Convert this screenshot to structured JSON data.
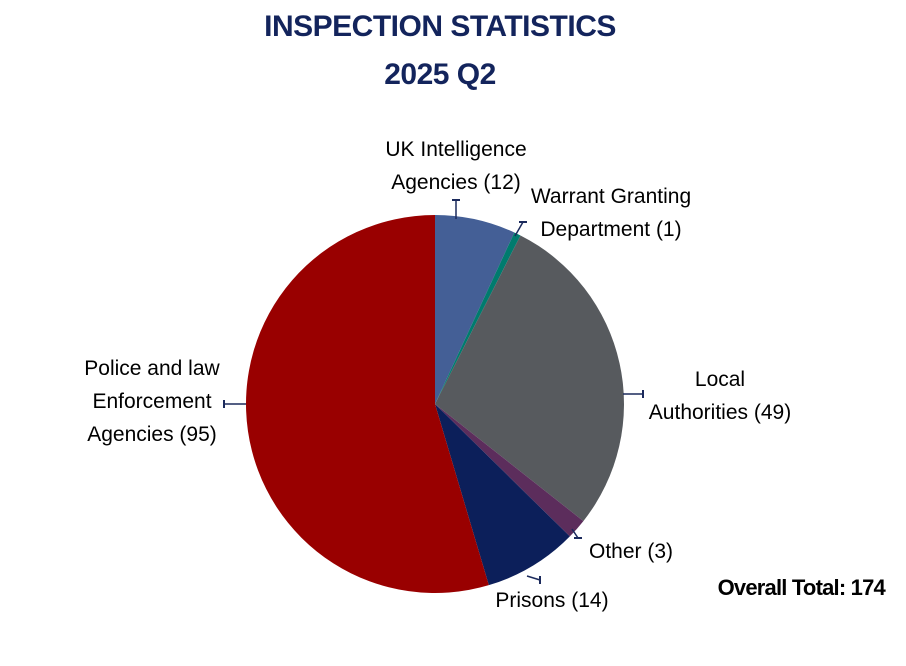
{
  "chart_data": {
    "type": "pie",
    "title": "INSPECTION STATISTICS",
    "subtitle": "2025 Q2",
    "slices": [
      {
        "label_lines": [
          "UK Intelligence",
          "Agencies (12)"
        ],
        "value": 12,
        "color": "#445f96"
      },
      {
        "label_lines": [
          "Warrant Granting",
          "Department (1)"
        ],
        "value": 1,
        "color": "#007b6e"
      },
      {
        "label_lines": [
          "Local",
          "Authorities (49)"
        ],
        "value": 49,
        "color": "#575a5e"
      },
      {
        "label_lines": [
          "Other (3)"
        ],
        "value": 3,
        "color": "#5c2d5c"
      },
      {
        "label_lines": [
          "Prisons (14)"
        ],
        "value": 14,
        "color": "#0c1f5a"
      },
      {
        "label_lines": [
          "Police and law",
          "Enforcement",
          "Agencies (95)"
        ],
        "value": 95,
        "color": "#990000"
      }
    ],
    "total_label": "Overall Total: 174",
    "leader_color": "#1b2a5c"
  }
}
